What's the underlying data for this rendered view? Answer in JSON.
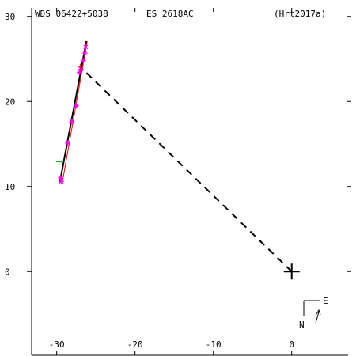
{
  "header": {
    "wds_id": "WDS 06422+5038",
    "discoverer": "ES 2618AC",
    "reference": "(Hrt2017a)"
  },
  "compass": {
    "east_label": "E",
    "north_label": "N"
  },
  "colors": {
    "axis": "#000000",
    "orbit": "#000000",
    "residual": "#ff0000",
    "obs_magenta": "#ff00ff",
    "obs_green": "#00aa00",
    "obs_red": "#ff0000",
    "primary": "#000000"
  },
  "chart_data": {
    "type": "scatter",
    "title": "WDS 06422+5038    ES 2618AC    (Hrt2017a)",
    "xlabel": "",
    "ylabel": "",
    "xlim": [
      -33.2,
      7.2
    ],
    "ylim": [
      -9.0,
      31.0
    ],
    "x_ticks": [
      -30,
      -20,
      -10,
      0
    ],
    "y_ticks": [
      0,
      10,
      20,
      30
    ],
    "grid": false,
    "primary_star": {
      "x": 0,
      "y": 0
    },
    "orbit_line": {
      "x": [
        -29.6,
        -26.2
      ],
      "y": [
        10.5,
        27.1
      ]
    },
    "periastron_line": {
      "x": [
        0,
        -26.8
      ],
      "y": [
        0,
        23.9
      ]
    },
    "series": [
      {
        "marker": "asterisk",
        "color": "obs_magenta",
        "x": [
          -29.4,
          -29.5,
          -28.6,
          -28.1,
          -27.5,
          -27.1,
          -26.9,
          -26.6,
          -26.4,
          -26.3
        ],
        "y": [
          10.6,
          11.0,
          15.1,
          17.6,
          19.5,
          23.4,
          23.8,
          24.8,
          25.7,
          26.4
        ]
      },
      {
        "marker": "plus",
        "color": "obs_green",
        "x": [
          -29.7
        ],
        "y": [
          12.9
        ]
      },
      {
        "marker": "plus",
        "color": "obs_red",
        "x": [
          -27.0
        ],
        "y": [
          24.1
        ]
      }
    ]
  }
}
